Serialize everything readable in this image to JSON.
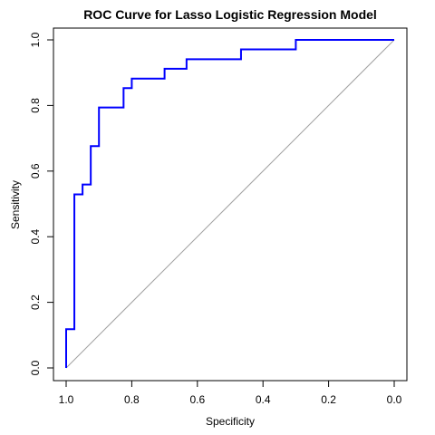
{
  "chart_data": {
    "type": "line",
    "title": "ROC Curve for Lasso Logistic Regression Model",
    "xlabel": "Specificity",
    "ylabel": "Sensitivity",
    "x_reversed": true,
    "xlim": [
      1.0,
      0.0
    ],
    "ylim": [
      0.0,
      1.0
    ],
    "x_ticks": [
      "1.0",
      "0.8",
      "0.6",
      "0.4",
      "0.2",
      "0.0"
    ],
    "y_ticks": [
      "0.0",
      "0.2",
      "0.4",
      "0.6",
      "0.8",
      "1.0"
    ],
    "grid": false,
    "reference_line": {
      "from": [
        1.0,
        0.0
      ],
      "to": [
        0.0,
        1.0
      ],
      "color": "#a0a0a0"
    },
    "series": [
      {
        "color": "#0000ff",
        "step": true,
        "points": [
          [
            1.0,
            0.0
          ],
          [
            1.0,
            0.118
          ],
          [
            0.975,
            0.118
          ],
          [
            0.975,
            0.529
          ],
          [
            0.95,
            0.529
          ],
          [
            0.95,
            0.559
          ],
          [
            0.925,
            0.559
          ],
          [
            0.925,
            0.676
          ],
          [
            0.9,
            0.676
          ],
          [
            0.9,
            0.794
          ],
          [
            0.825,
            0.794
          ],
          [
            0.825,
            0.853
          ],
          [
            0.8,
            0.853
          ],
          [
            0.8,
            0.882
          ],
          [
            0.7,
            0.882
          ],
          [
            0.7,
            0.912
          ],
          [
            0.633,
            0.912
          ],
          [
            0.633,
            0.941
          ],
          [
            0.467,
            0.941
          ],
          [
            0.467,
            0.971
          ],
          [
            0.3,
            0.971
          ],
          [
            0.3,
            1.0
          ],
          [
            0.0,
            1.0
          ]
        ]
      }
    ]
  }
}
